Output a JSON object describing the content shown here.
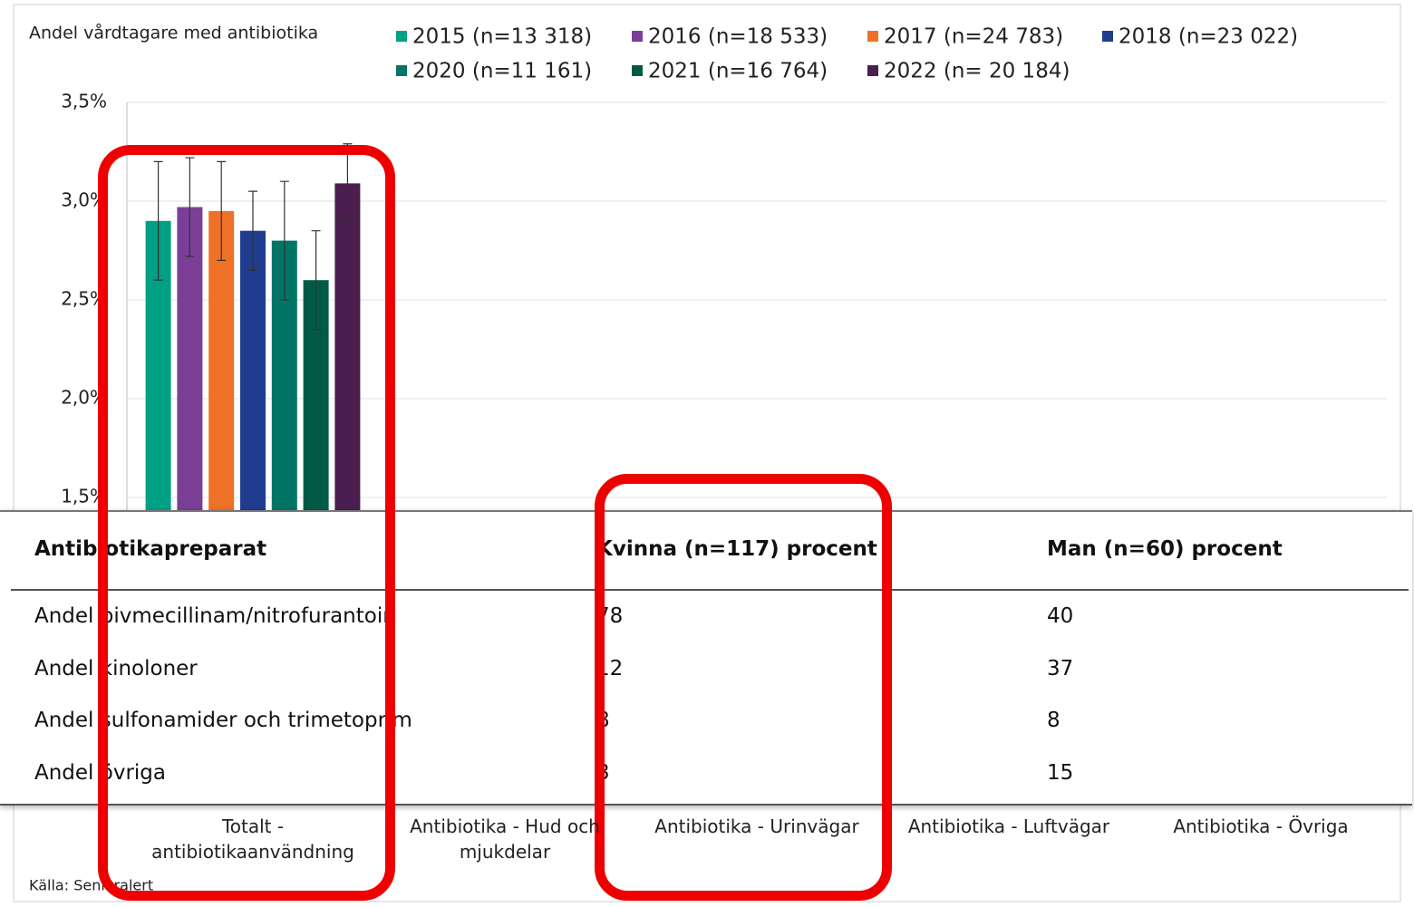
{
  "chart_data": {
    "type": "bar",
    "ylabel": "Andel vårdtagare med antibiotika",
    "categories": [
      "Totalt - antibiotikaanvändning",
      "Antibiotika - Hud och mjukdelar",
      "Antibiotika - Urinvägar",
      "Antibiotika - Luftvägar",
      "Antibiotika - Övriga"
    ],
    "series": [
      {
        "name": "2015 (n=13 318)",
        "color": "#00a084",
        "values": [
          2.9,
          null,
          null,
          null,
          null
        ],
        "errors": [
          0.3,
          null,
          null,
          null,
          null
        ]
      },
      {
        "name": "2016 (n=18 533)",
        "color": "#7b3f98",
        "values": [
          2.97,
          null,
          null,
          null,
          null
        ],
        "errors": [
          0.25,
          null,
          null,
          null,
          null
        ]
      },
      {
        "name": "2017 (n=24 783)",
        "color": "#ef7128",
        "values": [
          2.95,
          null,
          null,
          null,
          null
        ],
        "errors": [
          0.25,
          null,
          null,
          null,
          null
        ]
      },
      {
        "name": "2018 (n=23 022)",
        "color": "#1f3c8f",
        "values": [
          2.85,
          null,
          null,
          null,
          null
        ],
        "errors": [
          0.2,
          null,
          null,
          null,
          null
        ]
      },
      {
        "name": "2020 (n=11 161)",
        "color": "#007466",
        "values": [
          2.8,
          null,
          null,
          null,
          null
        ],
        "errors": [
          0.3,
          null,
          null,
          null,
          null
        ]
      },
      {
        "name": "2021 (n=16 764)",
        "color": "#005a46",
        "values": [
          2.6,
          null,
          null,
          null,
          null
        ],
        "errors": [
          0.25,
          null,
          null,
          null,
          null
        ]
      },
      {
        "name": "2022 (n= 20 184)",
        "color": "#4a1e4e",
        "values": [
          3.09,
          null,
          null,
          null,
          null
        ],
        "errors": [
          0.2,
          null,
          null,
          null,
          null
        ]
      }
    ],
    "ylim": [
      0,
      3.5
    ],
    "yticks": [
      {
        "value": 1.5,
        "label": "1,5%"
      },
      {
        "value": 2.0,
        "label": "2,0%"
      },
      {
        "value": 2.5,
        "label": "2,5%"
      },
      {
        "value": 3.0,
        "label": "3,0%"
      },
      {
        "value": 3.5,
        "label": "3,5%"
      }
    ],
    "grid": true,
    "source": "Källa: Senioralert"
  },
  "table": {
    "header": [
      "Antibiotikapreparat",
      "Kvinna (n=117) procent",
      "Man (n=60) procent"
    ],
    "rows": [
      [
        "Andel pivmecillinam/nitrofurantoin",
        "78",
        "40"
      ],
      [
        "Andel kinoloner",
        "12",
        "37"
      ],
      [
        "Andel sulfonamider och trimetoprim",
        "8",
        "8"
      ],
      [
        "Andel övriga",
        "3",
        "15"
      ]
    ]
  }
}
